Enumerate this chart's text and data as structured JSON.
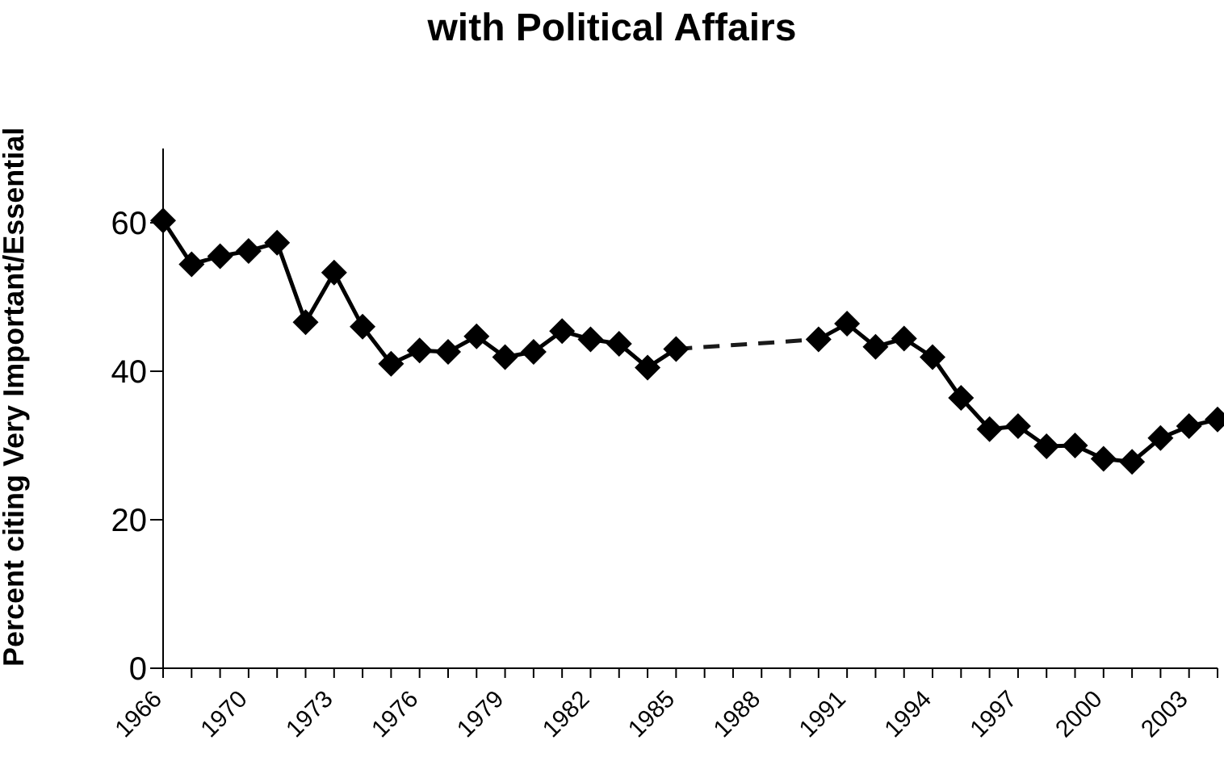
{
  "chart_data": {
    "type": "line",
    "title": "with Political Affairs",
    "ylabel": "Percent citing Very Important/Essential",
    "categories": [
      "1966",
      null,
      null,
      "1970",
      null,
      null,
      "1973",
      null,
      null,
      "1976",
      null,
      null,
      "1979",
      null,
      null,
      "1982",
      null,
      null,
      "1985",
      null,
      null,
      "1988",
      null,
      null,
      "1991",
      null,
      null,
      "1994",
      null,
      null,
      "1997",
      null,
      null,
      "2000",
      null,
      null,
      "2003",
      null
    ],
    "series": [
      {
        "color": "#000000",
        "marker": "diamond",
        "line_style": "solid",
        "values": [
          60.3,
          54.4,
          55.5,
          56.2,
          57.3,
          46.6,
          53.3,
          46.0,
          41.0,
          42.8,
          42.6,
          44.7,
          41.9,
          42.6,
          45.4,
          44.3,
          43.7,
          40.5,
          43.0,
          null,
          null,
          null,
          null,
          44.3,
          46.4,
          43.3,
          44.4,
          41.9,
          36.4,
          32.2,
          32.6,
          29.9,
          30.0,
          28.2,
          27.8,
          31.0,
          32.6,
          33.5
        ]
      },
      {
        "color": "#1a1a1a",
        "marker": "none",
        "line_style": "dashed",
        "values": [
          null,
          null,
          null,
          null,
          null,
          null,
          null,
          null,
          null,
          null,
          null,
          null,
          null,
          null,
          null,
          null,
          null,
          null,
          43.0,
          null,
          null,
          null,
          null,
          44.3,
          null,
          null,
          null,
          null,
          null,
          null,
          null,
          null,
          null,
          null,
          null,
          null,
          null,
          null
        ]
      }
    ],
    "ylim": [
      0,
      70
    ],
    "yticks": [
      0,
      20,
      40,
      60
    ],
    "grid": false
  }
}
